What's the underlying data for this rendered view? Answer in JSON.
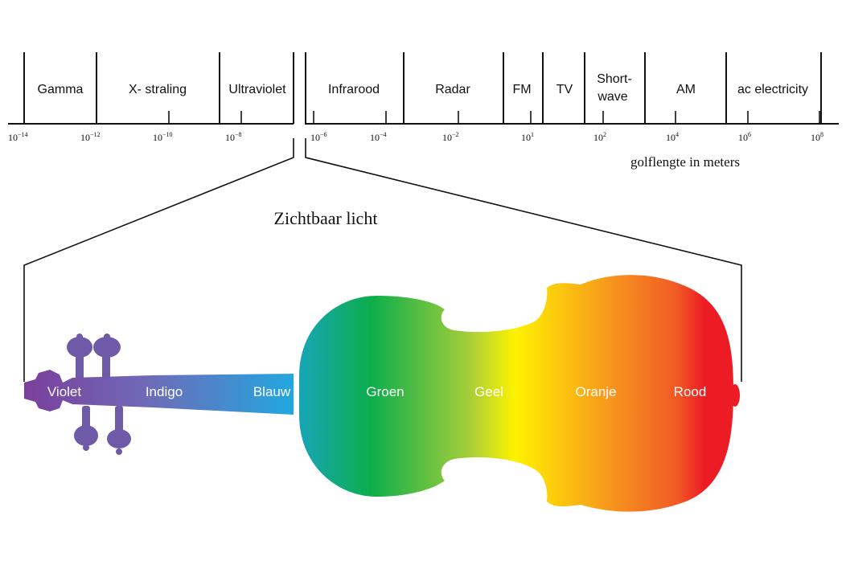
{
  "spectrum": {
    "bands": [
      {
        "id": "gamma",
        "label": "Gamma"
      },
      {
        "id": "xray",
        "label": "X- straling"
      },
      {
        "id": "uv",
        "label": "Ultraviolet"
      },
      {
        "id": "ir",
        "label": "Infrarood"
      },
      {
        "id": "radar",
        "label": "Radar"
      },
      {
        "id": "fm",
        "label": "FM"
      },
      {
        "id": "tv",
        "label": "TV"
      },
      {
        "id": "shortwave",
        "label": [
          "Short-",
          "wave"
        ]
      },
      {
        "id": "am",
        "label": "AM"
      },
      {
        "id": "ac",
        "label": "ac electricity"
      }
    ],
    "ticks": [
      {
        "base": "10",
        "exp": "−14"
      },
      {
        "base": "10",
        "exp": "−12"
      },
      {
        "base": "10",
        "exp": "−10"
      },
      {
        "base": "10",
        "exp": "−8"
      },
      {
        "base": "10",
        "exp": "−6"
      },
      {
        "base": "10",
        "exp": "−4"
      },
      {
        "base": "10",
        "exp": "−2"
      },
      {
        "base": "10",
        "exp": "1"
      },
      {
        "base": "10",
        "exp": "2"
      },
      {
        "base": "10",
        "exp": "4"
      },
      {
        "base": "10",
        "exp": "6"
      },
      {
        "base": "10",
        "exp": "8"
      }
    ],
    "axis_label": "golflengte in meters"
  },
  "visible_light": {
    "title": "Zichtbaar licht",
    "colors": [
      {
        "label": "Violet",
        "hex": "#7b3f9c"
      },
      {
        "label": "Indigo",
        "hex": "#6f6ab8"
      },
      {
        "label": "Blauw",
        "hex": "#1fa9e0"
      },
      {
        "label": "Groen",
        "hex": "#0bae4c"
      },
      {
        "label": "Geel",
        "hex": "#fff200"
      },
      {
        "label": "Oranje",
        "hex": "#f7931e"
      },
      {
        "label": "Rood",
        "hex": "#ed1c24"
      }
    ]
  }
}
